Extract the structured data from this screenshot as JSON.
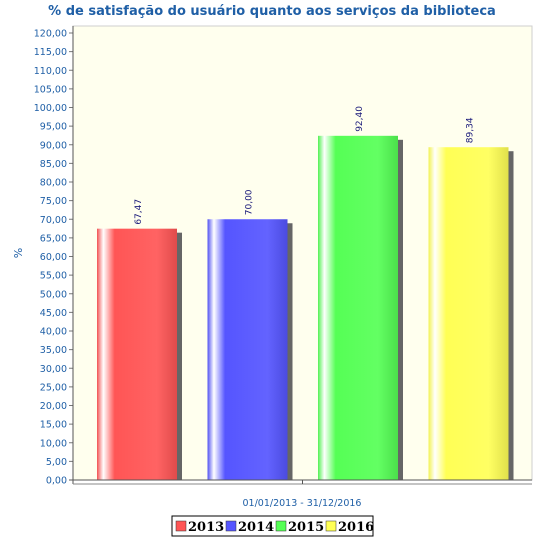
{
  "chart_data": {
    "type": "bar",
    "title": "% de satisfação do usuário quanto aos serviços da biblioteca",
    "ylabel": "%",
    "xlabel": "01/01/2013 - 31/12/2016",
    "ylim": [
      0,
      120
    ],
    "ytick_step": 5,
    "ytick_labels": [
      "0,00",
      "5,00",
      "10,00",
      "15,00",
      "20,00",
      "25,00",
      "30,00",
      "35,00",
      "40,00",
      "45,00",
      "50,00",
      "55,00",
      "60,00",
      "65,00",
      "70,00",
      "75,00",
      "80,00",
      "85,00",
      "90,00",
      "95,00",
      "100,00",
      "105,00",
      "110,00",
      "115,00",
      "120,00"
    ],
    "grid": false,
    "background": "#ffffee",
    "categories": [
      "2013",
      "2014",
      "2015",
      "2016"
    ],
    "values": [
      67.47,
      70.0,
      92.4,
      89.34
    ],
    "value_labels": [
      "67,47",
      "70,00",
      "92,40",
      "89,34"
    ],
    "colors": [
      "#ff5555",
      "#5555ff",
      "#55ff55",
      "#ffff55"
    ],
    "legend": {
      "placement": "bottom",
      "entries": [
        "2013",
        "2014",
        "2015",
        "2016"
      ]
    }
  }
}
